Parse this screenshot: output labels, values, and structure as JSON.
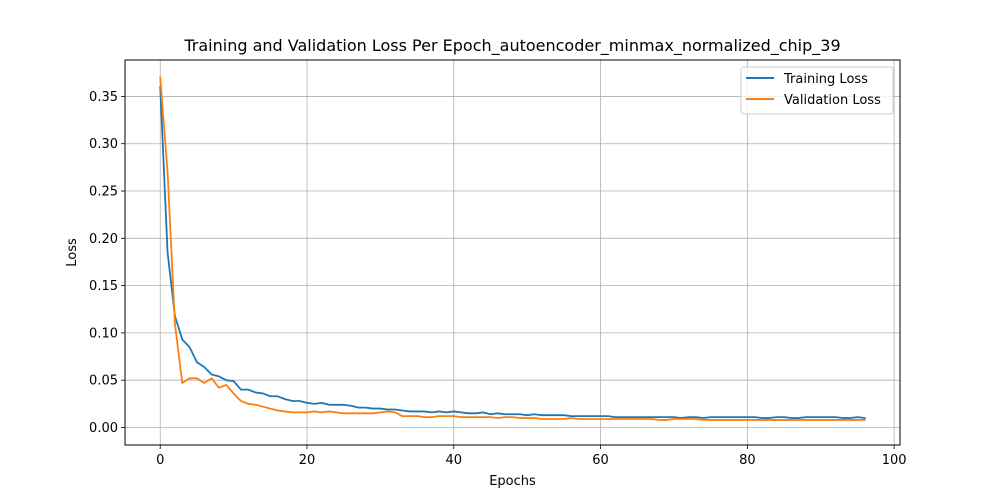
{
  "chart_data": {
    "type": "line",
    "title": "Training and Validation Loss Per Epoch_autoencoder_minmax_normalized_chip_39",
    "xlabel": "Epochs",
    "ylabel": "Loss",
    "xlim": [
      -4.8,
      100.8
    ],
    "ylim": [
      -0.0185,
      0.3885
    ],
    "xticks": [
      0,
      20,
      40,
      60,
      80,
      100
    ],
    "yticks": [
      0.0,
      0.05,
      0.1,
      0.15,
      0.2,
      0.25,
      0.3,
      0.35
    ],
    "xtick_labels": [
      "0",
      "20",
      "40",
      "60",
      "80",
      "100"
    ],
    "ytick_labels": [
      "0.00",
      "0.05",
      "0.10",
      "0.15",
      "0.20",
      "0.25",
      "0.30",
      "0.35"
    ],
    "grid": true,
    "legend_position": "upper right",
    "series": [
      {
        "name": "Training Loss",
        "color": "#1f77b4",
        "x": [
          0,
          1,
          2,
          3,
          4,
          5,
          6,
          7,
          8,
          9,
          10,
          11,
          12,
          13,
          14,
          15,
          16,
          17,
          18,
          19,
          20,
          21,
          22,
          23,
          24,
          25,
          26,
          27,
          28,
          29,
          30,
          31,
          32,
          33,
          34,
          35,
          36,
          37,
          38,
          39,
          40,
          41,
          42,
          43,
          44,
          45,
          46,
          47,
          48,
          49,
          50,
          51,
          52,
          53,
          54,
          55,
          56,
          57,
          58,
          59,
          60,
          61,
          62,
          63,
          64,
          65,
          66,
          67,
          68,
          69,
          70,
          71,
          72,
          73,
          74,
          75,
          76,
          77,
          78,
          79,
          80,
          81,
          82,
          83,
          84,
          85,
          86,
          87,
          88,
          89,
          90,
          91,
          92,
          93,
          94,
          95,
          96
        ],
        "values": [
          0.36,
          0.185,
          0.118,
          0.093,
          0.085,
          0.069,
          0.064,
          0.056,
          0.054,
          0.05,
          0.049,
          0.04,
          0.04,
          0.037,
          0.036,
          0.033,
          0.033,
          0.03,
          0.028,
          0.028,
          0.026,
          0.025,
          0.026,
          0.024,
          0.024,
          0.024,
          0.023,
          0.021,
          0.021,
          0.02,
          0.02,
          0.019,
          0.019,
          0.018,
          0.017,
          0.017,
          0.017,
          0.016,
          0.017,
          0.016,
          0.017,
          0.016,
          0.015,
          0.015,
          0.016,
          0.014,
          0.015,
          0.014,
          0.014,
          0.014,
          0.013,
          0.014,
          0.013,
          0.013,
          0.013,
          0.013,
          0.012,
          0.012,
          0.012,
          0.012,
          0.012,
          0.012,
          0.011,
          0.011,
          0.011,
          0.011,
          0.011,
          0.011,
          0.011,
          0.011,
          0.011,
          0.01,
          0.011,
          0.011,
          0.01,
          0.011,
          0.011,
          0.011,
          0.011,
          0.011,
          0.011,
          0.011,
          0.01,
          0.01,
          0.011,
          0.011,
          0.01,
          0.01,
          0.011,
          0.011,
          0.011,
          0.011,
          0.011,
          0.01,
          0.01,
          0.011,
          0.01
        ]
      },
      {
        "name": "Validation Loss",
        "color": "#ff7f0e",
        "x": [
          0,
          1,
          2,
          3,
          4,
          5,
          6,
          7,
          8,
          9,
          10,
          11,
          12,
          13,
          14,
          15,
          16,
          17,
          18,
          19,
          20,
          21,
          22,
          23,
          24,
          25,
          26,
          27,
          28,
          29,
          30,
          31,
          32,
          33,
          34,
          35,
          36,
          37,
          38,
          39,
          40,
          41,
          42,
          43,
          44,
          45,
          46,
          47,
          48,
          49,
          50,
          51,
          52,
          53,
          54,
          55,
          56,
          57,
          58,
          59,
          60,
          61,
          62,
          63,
          64,
          65,
          66,
          67,
          68,
          69,
          70,
          71,
          72,
          73,
          74,
          75,
          76,
          77,
          78,
          79,
          80,
          81,
          82,
          83,
          84,
          85,
          86,
          87,
          88,
          89,
          90,
          91,
          92,
          93,
          94,
          95,
          96
        ],
        "values": [
          0.37,
          0.27,
          0.11,
          0.047,
          0.052,
          0.052,
          0.047,
          0.052,
          0.042,
          0.045,
          0.036,
          0.028,
          0.025,
          0.024,
          0.022,
          0.02,
          0.018,
          0.017,
          0.016,
          0.016,
          0.016,
          0.017,
          0.016,
          0.017,
          0.016,
          0.015,
          0.015,
          0.015,
          0.015,
          0.015,
          0.016,
          0.017,
          0.016,
          0.012,
          0.012,
          0.012,
          0.011,
          0.011,
          0.012,
          0.012,
          0.012,
          0.011,
          0.011,
          0.011,
          0.011,
          0.011,
          0.01,
          0.011,
          0.011,
          0.01,
          0.01,
          0.01,
          0.009,
          0.009,
          0.009,
          0.009,
          0.01,
          0.009,
          0.009,
          0.009,
          0.009,
          0.009,
          0.009,
          0.009,
          0.009,
          0.009,
          0.009,
          0.009,
          0.008,
          0.008,
          0.009,
          0.009,
          0.009,
          0.009,
          0.008,
          0.008,
          0.008,
          0.008,
          0.008,
          0.008,
          0.008,
          0.008,
          0.008,
          0.008,
          0.008,
          0.008,
          0.008,
          0.008,
          0.008,
          0.008,
          0.008,
          0.008,
          0.008,
          0.008,
          0.008,
          0.008,
          0.008
        ]
      }
    ]
  }
}
